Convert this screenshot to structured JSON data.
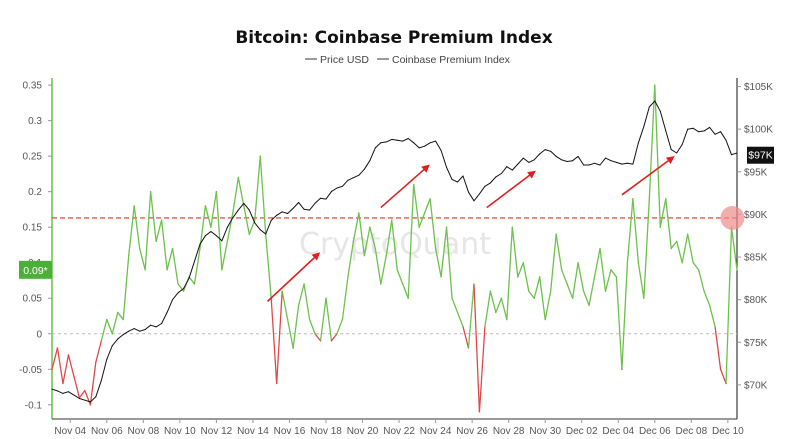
{
  "chart_data": {
    "type": "line",
    "title": "Bitcoin: Coinbase Premium Index",
    "watermark": "CryptoQuant",
    "legend": {
      "placement": "top-center",
      "entries": [
        "Price USD",
        "Coinbase Premium Index"
      ]
    },
    "x_ticks": [
      "Nov 04",
      "Nov 06",
      "Nov 08",
      "Nov 10",
      "Nov 12",
      "Nov 14",
      "Nov 16",
      "Nov 18",
      "Nov 20",
      "Nov 22",
      "Nov 24",
      "Nov 26",
      "Nov 28",
      "Nov 30",
      "Dec 02",
      "Dec 04",
      "Dec 06",
      "Dec 08",
      "Dec 10"
    ],
    "y_left": {
      "range": [
        -0.12,
        0.36
      ],
      "ticks": [
        0.35,
        0.3,
        0.25,
        0.2,
        0.15,
        0.1,
        0.05,
        0,
        -0.05,
        -0.1
      ],
      "tick_labels": [
        "0.35",
        "0.3",
        "0.25",
        "0.2",
        "0.15",
        "0.1",
        "0.05",
        "0",
        "-0.05",
        "-0.1"
      ]
    },
    "y_right": {
      "range": [
        66000,
        106000
      ],
      "ticks": [
        105000,
        100000,
        95000,
        90000,
        85000,
        80000,
        75000,
        70000
      ],
      "tick_labels": [
        "$105K",
        "$100K",
        "$95K",
        "$90K",
        "$85K",
        "$80K",
        "$75K",
        "$70K"
      ]
    },
    "current_labels": {
      "premium": "0.09*",
      "price": "$97K"
    },
    "reference_line": {
      "value": 0.163,
      "color": "#e03030",
      "style": "dashed"
    },
    "zero_line": {
      "value": 0,
      "color": "#bbbbbb",
      "style": "dashed"
    },
    "colors": {
      "price": "#111111",
      "premium_positive": "#6cc24a",
      "premium_negative": "#e04848",
      "arrow": "#e02020",
      "marker": "#f08a8a"
    },
    "series": [
      {
        "name": "Price USD",
        "axis": "right",
        "x": [
          3.0,
          3.3,
          3.6,
          3.9,
          4.2,
          4.5,
          4.8,
          5.1,
          5.4,
          5.7,
          6.0,
          6.3,
          6.6,
          6.9,
          7.2,
          7.5,
          7.8,
          8.1,
          8.4,
          8.7,
          9.0,
          9.3,
          9.6,
          9.9,
          10.2,
          10.5,
          10.8,
          11.1,
          11.4,
          11.7,
          12.0,
          12.3,
          12.6,
          12.9,
          13.2,
          13.5,
          13.8,
          14.1,
          14.4,
          14.7,
          15.0,
          15.3,
          15.6,
          15.9,
          16.2,
          16.5,
          16.8,
          17.1,
          17.4,
          17.7,
          18.0,
          18.3,
          18.6,
          18.9,
          19.2,
          19.5,
          19.8,
          20.1,
          20.4,
          20.7,
          21.0,
          21.3,
          21.6,
          21.9,
          22.2,
          22.5,
          22.8,
          23.1,
          23.4,
          23.7,
          24.0,
          24.3,
          24.6,
          24.9,
          25.2,
          25.5,
          25.8,
          26.1,
          26.4,
          26.7,
          27.0,
          27.3,
          27.6,
          27.9,
          28.2,
          28.5,
          28.8,
          29.1,
          29.4,
          29.7,
          30.0,
          30.3,
          30.6,
          30.9,
          31.2,
          31.5,
          31.8,
          32.1,
          32.4,
          32.7,
          33.0,
          33.3,
          33.6,
          33.9,
          34.2,
          34.5,
          34.8,
          35.1,
          35.4,
          35.7,
          36.0,
          36.3,
          36.6,
          36.9,
          37.2,
          37.5,
          37.8,
          38.1,
          38.4,
          38.7,
          39.0,
          39.3,
          39.6,
          39.9,
          40.2,
          40.5
        ],
        "values": [
          69500,
          69300,
          69000,
          69200,
          68800,
          68400,
          68200,
          68000,
          68600,
          70500,
          73000,
          74600,
          75400,
          75900,
          76300,
          76600,
          76300,
          76500,
          77000,
          76800,
          77200,
          78500,
          80000,
          80800,
          81300,
          82500,
          84500,
          86500,
          87500,
          88000,
          87500,
          86900,
          88500,
          89600,
          90500,
          91300,
          90500,
          89000,
          88200,
          87700,
          89300,
          89900,
          90300,
          90100,
          90700,
          91400,
          90600,
          90500,
          91300,
          91900,
          91800,
          92700,
          93100,
          93300,
          94000,
          94300,
          94600,
          95300,
          96300,
          97800,
          98400,
          98500,
          98800,
          98700,
          98600,
          98900,
          98400,
          97800,
          98000,
          98400,
          98600,
          97500,
          95500,
          94100,
          93800,
          94500,
          92600,
          91600,
          92400,
          93300,
          93700,
          94400,
          94800,
          95600,
          95200,
          95900,
          96600,
          96100,
          96400,
          97100,
          97600,
          97400,
          96800,
          96400,
          96200,
          96300,
          96800,
          95800,
          95800,
          96000,
          95800,
          96600,
          96300,
          96100,
          95900,
          96000,
          95900,
          98400,
          100300,
          102600,
          103300,
          102100,
          99800,
          97600,
          97200,
          98200,
          100000,
          100100,
          99700,
          99800,
          100200,
          99400,
          99700,
          98700,
          97000,
          97200
        ]
      },
      {
        "name": "Coinbase Premium Index",
        "axis": "left",
        "x": [
          3.0,
          3.3,
          3.6,
          3.9,
          4.2,
          4.5,
          4.8,
          5.1,
          5.4,
          5.7,
          6.0,
          6.3,
          6.6,
          6.9,
          7.2,
          7.5,
          7.8,
          8.1,
          8.4,
          8.7,
          9.0,
          9.3,
          9.6,
          9.9,
          10.2,
          10.5,
          10.8,
          11.1,
          11.4,
          11.7,
          12.0,
          12.3,
          12.6,
          12.9,
          13.2,
          13.5,
          13.8,
          14.1,
          14.4,
          14.7,
          15.0,
          15.3,
          15.6,
          15.9,
          16.2,
          16.5,
          16.8,
          17.1,
          17.4,
          17.7,
          18.0,
          18.3,
          18.6,
          18.9,
          19.2,
          19.5,
          19.8,
          20.1,
          20.4,
          20.7,
          21.0,
          21.3,
          21.6,
          21.9,
          22.2,
          22.5,
          22.8,
          23.1,
          23.4,
          23.7,
          24.0,
          24.3,
          24.6,
          24.9,
          25.2,
          25.5,
          25.8,
          26.1,
          26.4,
          26.7,
          27.0,
          27.3,
          27.6,
          27.9,
          28.2,
          28.5,
          28.8,
          29.1,
          29.4,
          29.7,
          30.0,
          30.3,
          30.6,
          30.9,
          31.2,
          31.5,
          31.8,
          32.1,
          32.4,
          32.7,
          33.0,
          33.3,
          33.6,
          33.9,
          34.2,
          34.5,
          34.8,
          35.1,
          35.4,
          35.7,
          36.0,
          36.3,
          36.6,
          36.9,
          37.2,
          37.5,
          37.8,
          38.1,
          38.4,
          38.7,
          39.0,
          39.3,
          39.6,
          39.9,
          40.2,
          40.5
        ],
        "values": [
          -0.05,
          -0.02,
          -0.07,
          -0.03,
          -0.06,
          -0.09,
          -0.08,
          -0.1,
          -0.04,
          -0.01,
          0.02,
          0.0,
          0.03,
          0.02,
          0.11,
          0.18,
          0.12,
          0.09,
          0.2,
          0.13,
          0.16,
          0.09,
          0.12,
          0.07,
          0.06,
          0.08,
          0.07,
          0.12,
          0.18,
          0.15,
          0.2,
          0.09,
          0.13,
          0.17,
          0.22,
          0.18,
          0.14,
          0.16,
          0.25,
          0.14,
          0.05,
          -0.07,
          0.06,
          0.02,
          -0.02,
          0.04,
          0.07,
          0.02,
          0.0,
          -0.01,
          0.05,
          -0.01,
          0.0,
          0.02,
          0.08,
          0.13,
          0.17,
          0.11,
          0.15,
          0.12,
          0.07,
          0.11,
          0.16,
          0.09,
          0.07,
          0.05,
          0.21,
          0.15,
          0.17,
          0.19,
          0.12,
          0.08,
          0.15,
          0.05,
          0.03,
          0.01,
          -0.02,
          0.07,
          -0.11,
          0.01,
          0.06,
          0.03,
          0.05,
          0.02,
          0.15,
          0.08,
          0.1,
          0.06,
          0.05,
          0.08,
          0.02,
          0.06,
          0.14,
          0.09,
          0.07,
          0.05,
          0.1,
          0.06,
          0.04,
          0.08,
          0.12,
          0.06,
          0.09,
          0.08,
          -0.05,
          0.1,
          0.19,
          0.1,
          0.05,
          0.19,
          0.35,
          0.15,
          0.19,
          0.12,
          0.13,
          0.1,
          0.14,
          0.1,
          0.09,
          0.06,
          0.04,
          0.01,
          -0.05,
          -0.07,
          0.15,
          0.09
        ]
      }
    ],
    "annotations": [
      {
        "type": "arrow",
        "from": [
          14.8,
          79800
        ],
        "to": [
          17.6,
          85400
        ]
      },
      {
        "type": "arrow",
        "from": [
          21.0,
          90800
        ],
        "to": [
          23.6,
          95700
        ]
      },
      {
        "type": "arrow",
        "from": [
          26.8,
          90800
        ],
        "to": [
          29.4,
          95000
        ]
      },
      {
        "type": "arrow",
        "from": [
          34.2,
          92300
        ],
        "to": [
          37.0,
          96700
        ]
      },
      {
        "type": "circle",
        "at": [
          40.25,
          0.163
        ]
      }
    ]
  }
}
